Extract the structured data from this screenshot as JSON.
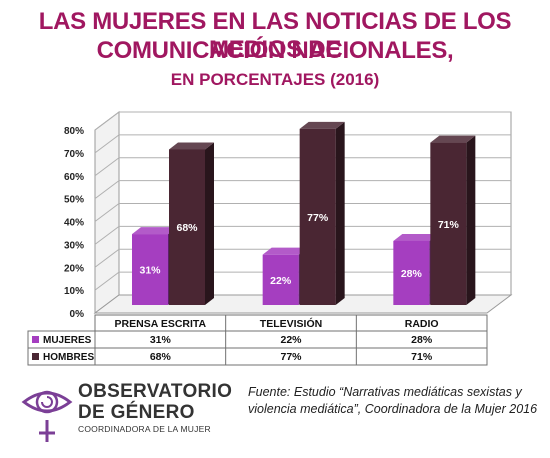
{
  "header": {
    "title_line1": "LAS MUJERES EN LAS NOTICIAS DE LOS MEDIOS DE",
    "title_line2": "COMUNICACIÓN NACIONALES,",
    "subtitle": "EN PORCENTAJES (2016)"
  },
  "chart_data": {
    "type": "bar",
    "categories": [
      "PRENSA ESCRITA",
      "TELEVISIÓN",
      "RADIO"
    ],
    "series": [
      {
        "name": "MUJERES",
        "values": [
          31,
          22,
          28
        ],
        "labels": [
          "31%",
          "22%",
          "28%"
        ],
        "color": "#a53ec0"
      },
      {
        "name": "HOMBRES",
        "values": [
          68,
          77,
          71
        ],
        "labels": [
          "68%",
          "77%",
          "71%"
        ],
        "color": "#4a2633"
      }
    ],
    "y_ticks": [
      "0%",
      "10%",
      "20%",
      "30%",
      "40%",
      "50%",
      "60%",
      "70%",
      "80%"
    ],
    "ylim": [
      0,
      80
    ],
    "grid": true,
    "legend": "data table below chart",
    "three_d": true
  },
  "logo": {
    "line1": "OBSERVATORIO",
    "line2": "DE GÉNERO",
    "line3": "COORDINADORA DE LA MUJER",
    "icon": "eye-venus-symbol-icon",
    "color": "#7b3f96"
  },
  "source": {
    "text": "Fuente: Estudio “Narrativas mediáticas sexistas y violencia mediática”, Coordinadora de la Mujer 2016"
  }
}
